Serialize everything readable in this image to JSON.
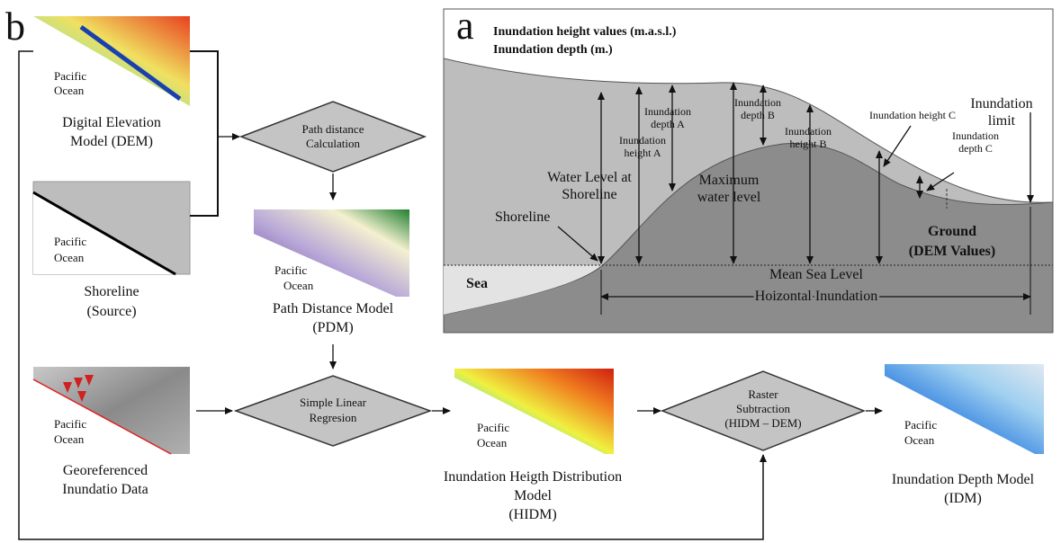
{
  "panel_b": {
    "label": "b",
    "dem": {
      "caption": [
        "Digital Elevation",
        "Model (DEM)"
      ],
      "map_label": [
        "Pacific",
        "Ocean"
      ]
    },
    "shoreline": {
      "caption": [
        "Shoreline",
        "(Source)"
      ],
      "map_label": [
        "Pacific",
        "Ocean"
      ]
    },
    "pdm": {
      "caption": [
        "Path Distance Model",
        "(PDM)"
      ],
      "map_label": [
        "Pacific",
        "Ocean"
      ]
    },
    "georef": {
      "caption": [
        "Georeferenced",
        "Inundatio Data"
      ],
      "map_label": [
        "Pacific",
        "Ocean"
      ]
    },
    "hidm": {
      "caption": [
        "Inundation Heigth Distribution",
        "Model",
        "(HIDM)"
      ],
      "map_label": [
        "Pacific",
        "Ocean"
      ]
    },
    "idm": {
      "caption": [
        "Inundation Depth Model",
        "(IDM)"
      ],
      "map_label": [
        "Pacific",
        "Ocean"
      ]
    },
    "steps": [
      [
        "Path distance",
        "Calculation"
      ],
      [
        "Simple Linear",
        "Regresion"
      ],
      [
        "Raster",
        "Subtraction",
        "(HIDM – DEM)"
      ]
    ]
  },
  "panel_a": {
    "label": "a",
    "legend": [
      "Inundation height values (m.a.s.l.)",
      "Inundation depth (m.)"
    ],
    "inundation_limit": [
      "Inundation",
      "limit"
    ],
    "depth_a": [
      "Inundation",
      "depth A"
    ],
    "height_a": [
      "Inundation",
      "height A"
    ],
    "depth_b": [
      "Inundation",
      "depth B"
    ],
    "height_b": [
      "Inundation",
      "height  B"
    ],
    "height_c": "Inundation height C",
    "depth_c": [
      "Inundation",
      "depth C"
    ],
    "water_level": [
      "Water Level at",
      "Shoreline"
    ],
    "max_level": [
      "Maximum",
      "water level"
    ],
    "shoreline": "Shoreline",
    "ground": [
      "Ground",
      "(DEM Values)"
    ],
    "sea": "Sea",
    "msl": "Mean Sea Level",
    "horizontal": "Hoizontal Inundation"
  }
}
